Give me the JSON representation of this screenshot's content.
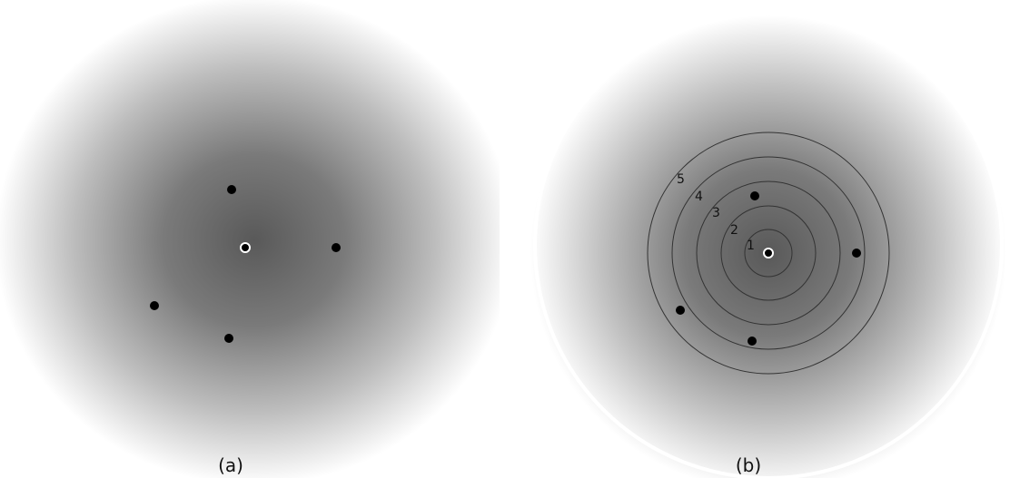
{
  "panels": [
    {
      "caption": "(a)",
      "points": 4,
      "has_center": true
    },
    {
      "caption": "(b)",
      "ring_labels": [
        "1",
        "2",
        "3",
        "4",
        "5"
      ],
      "points": 4,
      "has_center": true
    }
  ],
  "colors": {
    "center_dark": "#595959",
    "background": "#ffffff",
    "point": "#000000",
    "ring_stroke": "#333333",
    "outer_circle": "#ffffff"
  }
}
